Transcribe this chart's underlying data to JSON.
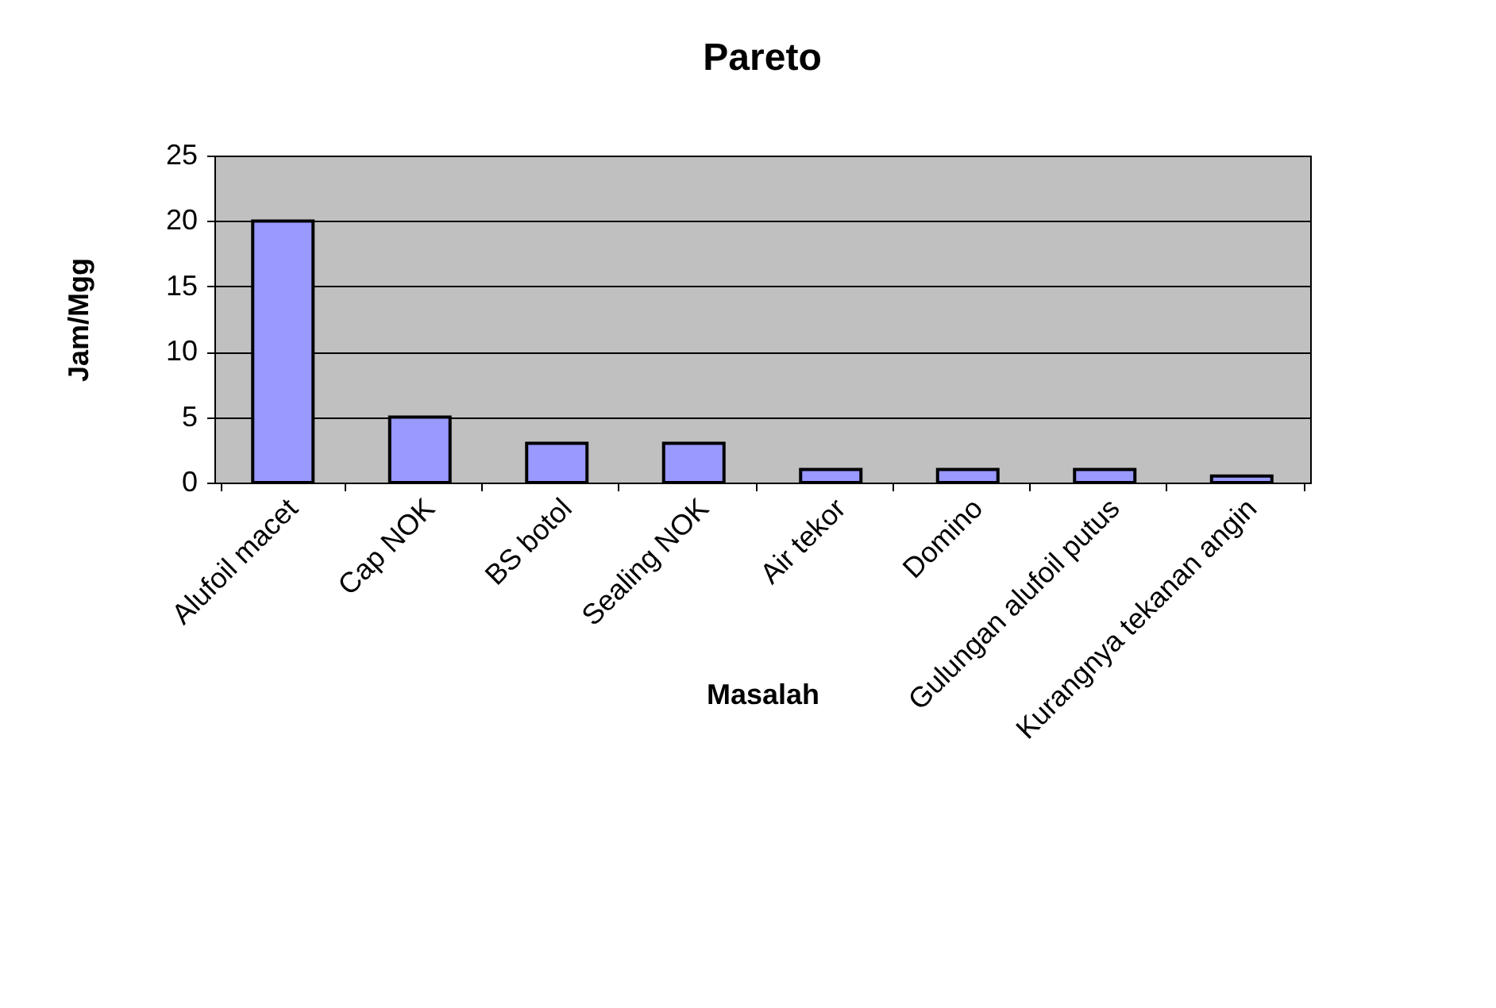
{
  "chart_data": {
    "type": "bar",
    "title": "Pareto",
    "xlabel": "Masalah",
    "ylabel": "Jam/Mgg",
    "categories": [
      "Alufoil macet",
      "Cap NOK",
      "BS botol",
      "Sealing NOK",
      "Air tekor",
      "Domino",
      "Gulungan alufoil putus",
      "Kurangnya tekanan angin"
    ],
    "values": [
      20,
      5,
      3,
      3,
      1,
      1,
      1,
      0.5
    ],
    "color": "#9999ff",
    "ylim": [
      0,
      25
    ],
    "yticks": [
      0,
      5,
      10,
      15,
      20,
      25
    ],
    "grid": "y"
  }
}
